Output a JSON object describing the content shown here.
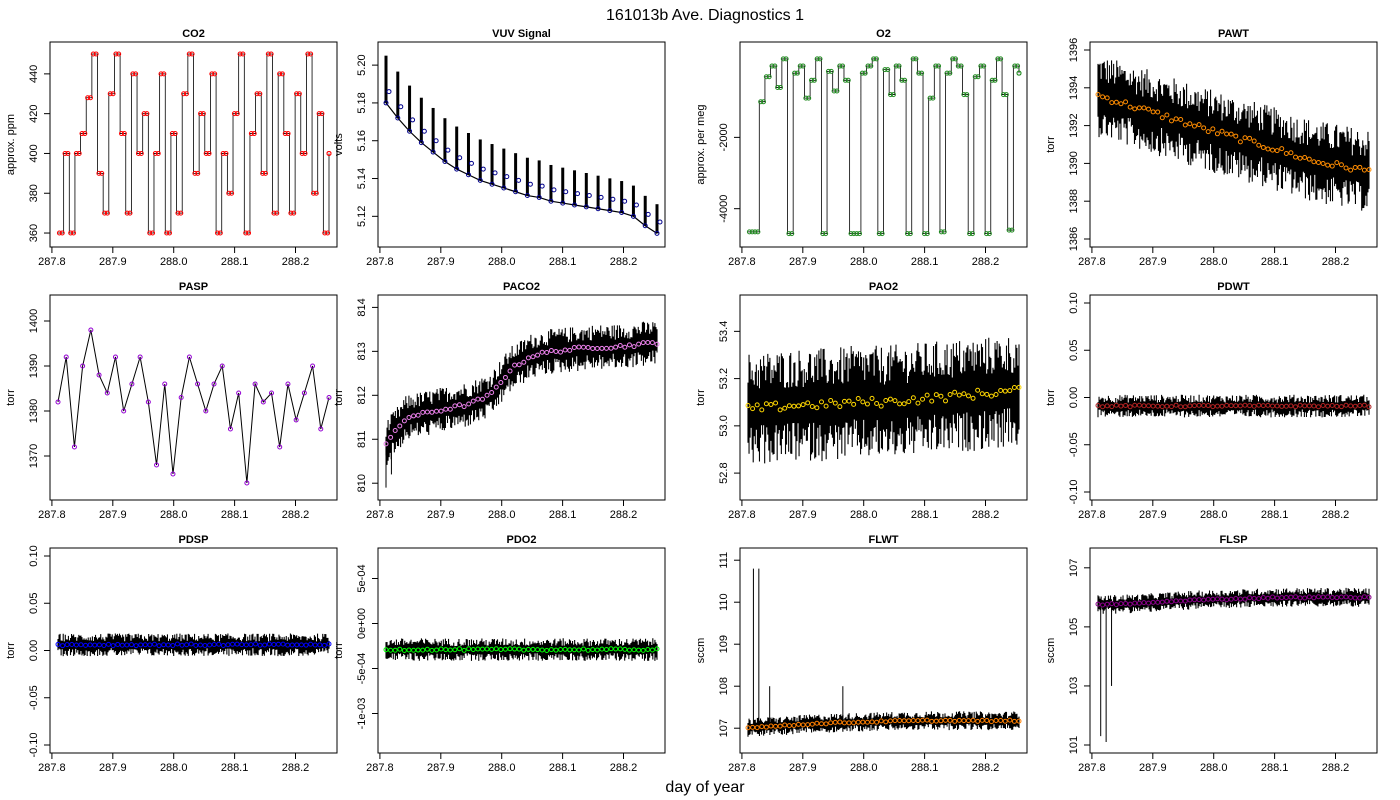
{
  "figure": {
    "title": "161013b   Ave. Diagnostics 1",
    "xlabel": "day of year"
  },
  "colors": {
    "trace": "#000000",
    "CO2": "#ff0000",
    "VUV Signal": "#00008b",
    "O2": "#228b22",
    "PAWT": "#ff8c00",
    "PASP": "#9400d3",
    "PACO2": "#ee82ee",
    "PAO2": "#ffd700",
    "PDWT": "#b22222",
    "PDSP": "#0000ff",
    "PDO2": "#00ff00",
    "FLWT": "#ff7f00",
    "FLSP": "#8b008b"
  },
  "chart_data": [
    {
      "type": "line",
      "title": "CO2",
      "ylabel": "approx. ppm",
      "xlim": [
        287.81,
        288.255
      ],
      "ylim": [
        357,
        452
      ],
      "xticks": [
        "287.8",
        "287.9",
        "288.0",
        "288.1",
        "288.2"
      ],
      "yticks": [
        "360",
        "380",
        "400",
        "420",
        "440"
      ],
      "series": [
        {
          "values": [
            360,
            400,
            360,
            400,
            410,
            428,
            450,
            390,
            370,
            430,
            450,
            410,
            370,
            440,
            400,
            420,
            360,
            400,
            440,
            360,
            410,
            370,
            430,
            450,
            390,
            420,
            400,
            440,
            360,
            400,
            380,
            420,
            450,
            360,
            410,
            430,
            390,
            450,
            370,
            440,
            410,
            370,
            430,
            400,
            450,
            380,
            420,
            360,
            400
          ]
        }
      ]
    },
    {
      "type": "line",
      "title": "VUV Signal",
      "ylabel": "volts",
      "xlim": [
        287.81,
        288.255
      ],
      "ylim": [
        5.108,
        5.208
      ],
      "xticks": [
        "287.8",
        "287.9",
        "288.0",
        "288.1",
        "288.2"
      ],
      "yticks": [
        "5.12",
        "5.14",
        "5.16",
        "5.18",
        "5.20"
      ],
      "series": [
        {
          "values": [
            5.18,
            5.172,
            5.165,
            5.159,
            5.154,
            5.149,
            5.145,
            5.142,
            5.139,
            5.137,
            5.135,
            5.133,
            5.131,
            5.13,
            5.128,
            5.127,
            5.126,
            5.125,
            5.124,
            5.123,
            5.122,
            5.12,
            5.115,
            5.111
          ]
        }
      ]
    },
    {
      "type": "line",
      "title": "O2",
      "ylabel": "approx. per meg",
      "xlim": [
        287.81,
        288.255
      ],
      "ylim": [
        -4850,
        450
      ],
      "xticks": [
        "287.8",
        "287.9",
        "288.0",
        "288.1",
        "288.2"
      ],
      "yticks": [
        "-4000",
        "-2000"
      ],
      "series": [
        {
          "values": [
            -4650,
            -4650,
            -1000,
            -300,
            0,
            -600,
            200,
            -4700,
            -200,
            0,
            -900,
            -400,
            200,
            -4700,
            -150,
            -700,
            0,
            -400,
            -4700,
            -4700,
            -200,
            0,
            200,
            -4700,
            -100,
            -800,
            0,
            -400,
            -4700,
            200,
            -200,
            -4700,
            -900,
            0,
            -4650,
            -200,
            200,
            0,
            -800,
            -4700,
            -300,
            0,
            -4700,
            -400,
            200,
            -800,
            -4600,
            0,
            -200
          ]
        }
      ]
    },
    {
      "type": "line",
      "title": "PAWT",
      "ylabel": "torr",
      "xlim": [
        287.81,
        288.255
      ],
      "ylim": [
        1386,
        1396
      ],
      "xticks": [
        "287.8",
        "287.9",
        "288.0",
        "288.1",
        "288.2"
      ],
      "yticks": [
        "1386",
        "1388",
        "1390",
        "1392",
        "1394",
        "1396"
      ],
      "series": [
        {
          "values": [
            1393.6,
            1392.7,
            1391.8,
            1391.0,
            1390.1,
            1389.6
          ]
        }
      ]
    },
    {
      "type": "line",
      "title": "PASP",
      "ylabel": "torr",
      "xlim": [
        287.81,
        288.255
      ],
      "ylim": [
        1362,
        1404
      ],
      "xticks": [
        "287.8",
        "287.9",
        "288.0",
        "288.1",
        "288.2"
      ],
      "yticks": [
        "1370",
        "1380",
        "1390",
        "1400"
      ],
      "series": [
        {
          "values": [
            1382,
            1392,
            1372,
            1390,
            1398,
            1388,
            1384,
            1392,
            1380,
            1386,
            1392,
            1382,
            1368,
            1386,
            1366,
            1383,
            1392,
            1386,
            1380,
            1386,
            1390,
            1376,
            1384,
            1364,
            1386,
            1382,
            1384,
            1372,
            1386,
            1378,
            1384,
            1390,
            1376,
            1383
          ]
        }
      ]
    },
    {
      "type": "line",
      "title": "PACO2",
      "ylabel": "torr",
      "xlim": [
        287.81,
        288.255
      ],
      "ylim": [
        809.8,
        814.1
      ],
      "xticks": [
        "287.8",
        "287.9",
        "288.0",
        "288.1",
        "288.2"
      ],
      "yticks": [
        "810",
        "811",
        "812",
        "813",
        "814"
      ],
      "series": [
        {
          "values": [
            810.9,
            811.5,
            811.6,
            811.7,
            811.8,
            812.0,
            812.6,
            812.9,
            813.0,
            813.05,
            813.1,
            813.1,
            813.15,
            813.2
          ]
        }
      ]
    },
    {
      "type": "line",
      "title": "PAO2",
      "ylabel": "torr",
      "xlim": [
        287.81,
        288.255
      ],
      "ylim": [
        52.72,
        53.52
      ],
      "xticks": [
        "287.8",
        "287.9",
        "288.0",
        "288.1",
        "288.2"
      ],
      "yticks": [
        "52.8",
        "53.0",
        "53.2",
        "53.4"
      ],
      "series": [
        {
          "values": [
            53.07,
            53.08,
            53.09,
            53.09,
            53.1,
            53.1,
            53.11,
            53.12,
            53.13,
            53.14,
            53.15
          ]
        }
      ]
    },
    {
      "type": "line",
      "title": "PDWT",
      "ylabel": "torr",
      "xlim": [
        287.81,
        288.255
      ],
      "ylim": [
        -0.1,
        0.1
      ],
      "xticks": [
        "287.8",
        "287.9",
        "288.0",
        "288.1",
        "288.2"
      ],
      "yticks": [
        "-0.10",
        "-0.05",
        "0.00",
        "0.05",
        "0.10"
      ],
      "series": [
        {
          "values": [
            -0.009,
            -0.009,
            -0.009,
            -0.009,
            -0.009
          ]
        }
      ]
    },
    {
      "type": "line",
      "title": "PDSP",
      "ylabel": "torr",
      "xlim": [
        287.81,
        288.255
      ],
      "ylim": [
        -0.1,
        0.1
      ],
      "xticks": [
        "287.8",
        "287.9",
        "288.0",
        "288.1",
        "288.2"
      ],
      "yticks": [
        "-0.10",
        "-0.05",
        "0.00",
        "0.05",
        "0.10"
      ],
      "series": [
        {
          "values": [
            0.006,
            0.006,
            0.006,
            0.006,
            0.006
          ]
        }
      ]
    },
    {
      "type": "line",
      "title": "PDO2",
      "ylabel": "torr",
      "xlim": [
        287.81,
        288.255
      ],
      "ylim": [
        -0.00135,
        0.00075
      ],
      "xticks": [
        "287.8",
        "287.9",
        "288.0",
        "288.1",
        "288.2"
      ],
      "yticks": [
        "-1e-03",
        "-5e-04",
        "0e+00",
        "5e-04"
      ],
      "series": [
        {
          "values": [
            -0.00029,
            -0.00029,
            -0.00029,
            -0.00029,
            -0.00029
          ]
        }
      ]
    },
    {
      "type": "line",
      "title": "FLWT",
      "ylabel": "sccm",
      "xlim": [
        287.81,
        288.255
      ],
      "ylim": [
        106.6,
        111.1
      ],
      "xticks": [
        "287.8",
        "287.9",
        "288.0",
        "288.1",
        "288.2"
      ],
      "yticks": [
        "107",
        "108",
        "109",
        "110",
        "111"
      ],
      "series": [
        {
          "values": [
            107.02,
            107.05,
            107.1,
            107.13,
            107.15,
            107.17,
            107.18,
            107.18,
            107.17,
            107.18
          ]
        }
      ]
    },
    {
      "type": "line",
      "title": "FLSP",
      "ylabel": "sccm",
      "xlim": [
        287.81,
        288.255
      ],
      "ylim": [
        101,
        107.4
      ],
      "xticks": [
        "287.8",
        "287.9",
        "288.0",
        "288.1",
        "288.2"
      ],
      "yticks": [
        "101",
        "103",
        "105",
        "107"
      ],
      "series": [
        {
          "values": [
            105.75,
            105.8,
            105.9,
            105.95,
            106.0,
            106.0,
            106.0
          ]
        }
      ]
    }
  ]
}
